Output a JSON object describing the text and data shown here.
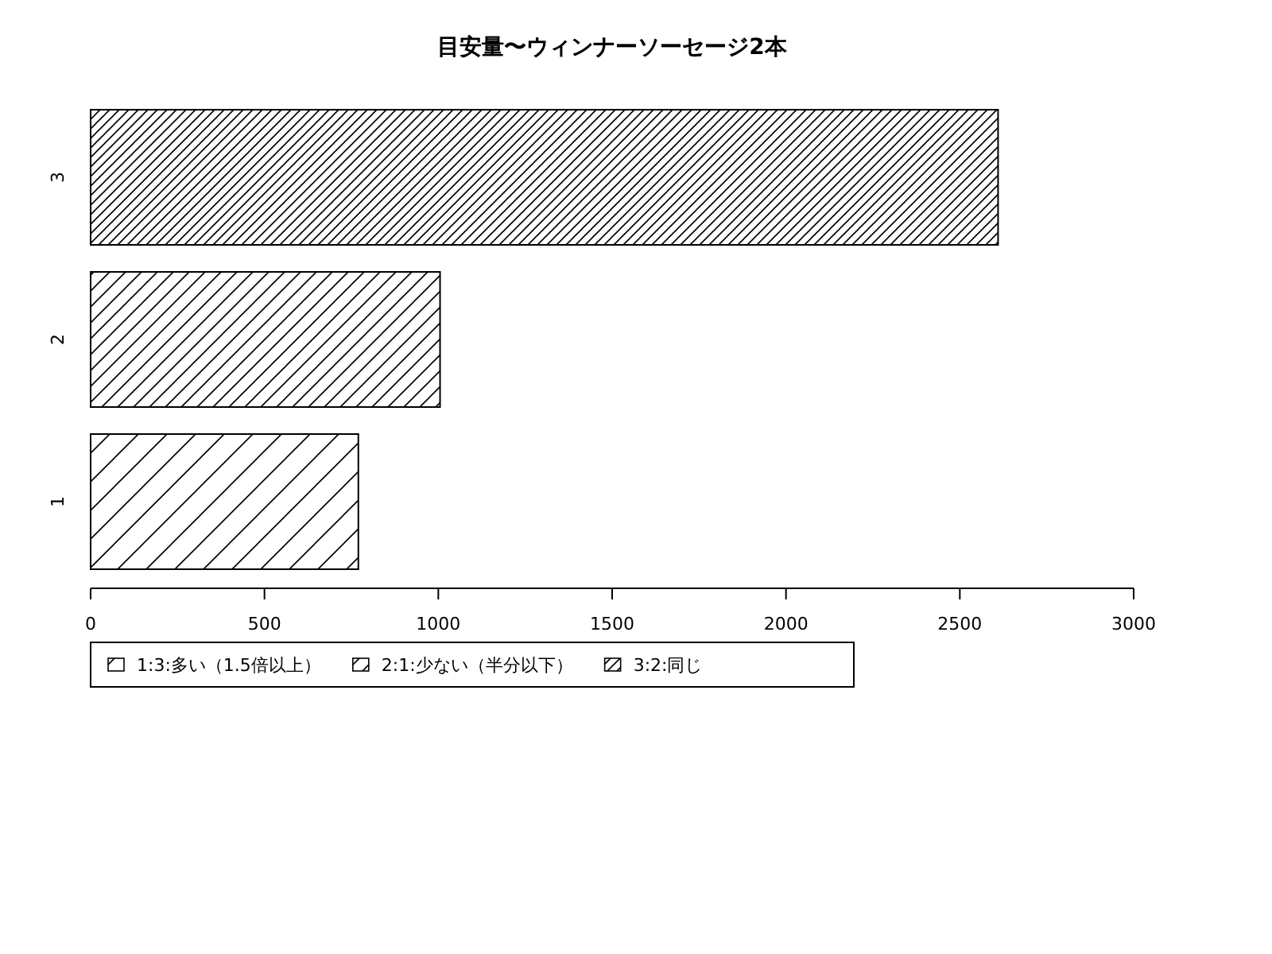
{
  "chart_data": {
    "type": "bar",
    "orientation": "horizontal",
    "title": "目安量〜ウィンナーソーセージ2本",
    "categories": [
      "3",
      "2",
      "1"
    ],
    "series": [
      {
        "name": "1:3:多い（1.5倍以上）",
        "color": "#000000",
        "values": [
          null,
          null,
          770
        ]
      },
      {
        "name": "2:1:少ない（半分以下）",
        "color": "#000000",
        "values": [
          null,
          1005,
          null
        ]
      },
      {
        "name": "3:2:同じ",
        "color": "#000000",
        "values": [
          2610,
          null,
          null
        ]
      }
    ],
    "xlim": [
      0,
      3000
    ],
    "xticks": [
      0,
      500,
      1000,
      1500,
      2000,
      2500,
      3000
    ],
    "legend": "bottom",
    "grid": false
  }
}
